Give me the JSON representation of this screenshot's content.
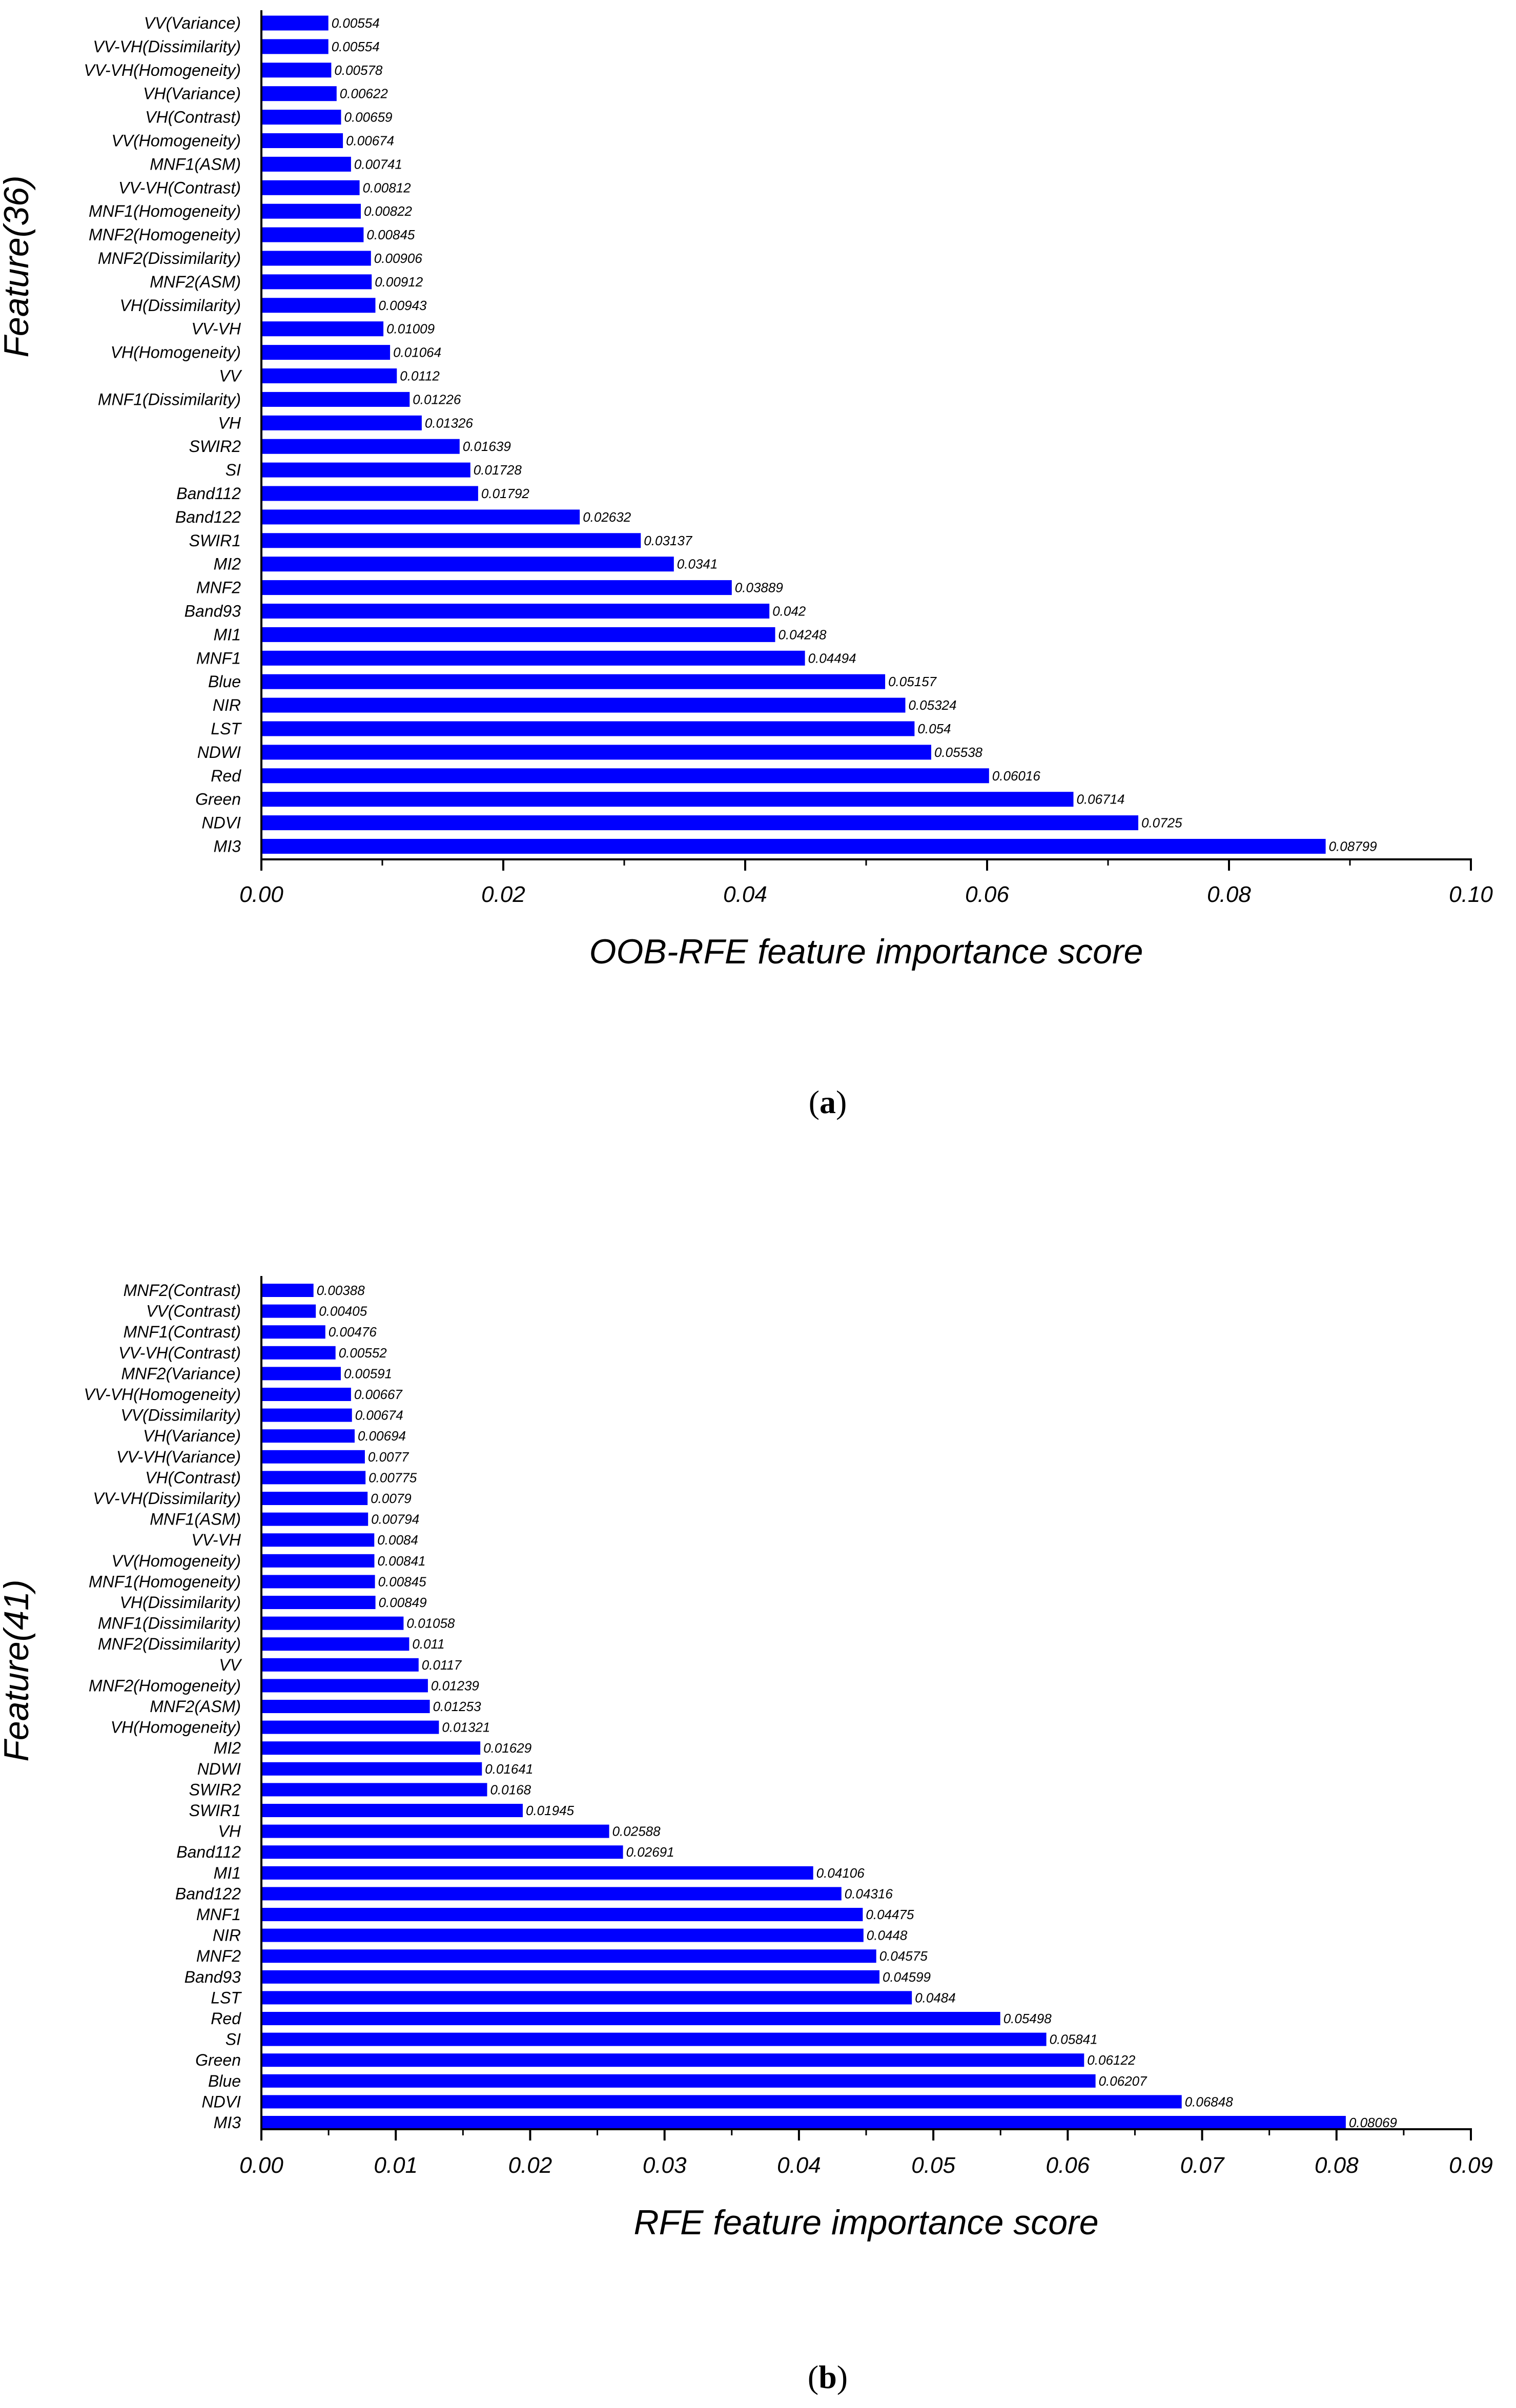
{
  "colors": {
    "bar": "#0000ff",
    "axis": "#000000",
    "text": "#000000"
  },
  "chart_data": [
    {
      "type": "bar",
      "orientation": "horizontal",
      "panel_label": "a",
      "ylabel": "Feature(36)",
      "xlabel": "OOB-RFE feature importance score",
      "xlim": [
        0,
        0.1
      ],
      "xticks": [
        "0.00",
        "0.02",
        "0.04",
        "0.06",
        "0.08",
        "0.10"
      ],
      "categories": [
        "VV(Variance)",
        "VV-VH(Dissimilarity)",
        "VV-VH(Homogeneity)",
        "VH(Variance)",
        "VH(Contrast)",
        "VV(Homogeneity)",
        "MNF1(ASM)",
        "VV-VH(Contrast)",
        "MNF1(Homogeneity)",
        "MNF2(Homogeneity)",
        "MNF2(Dissimilarity)",
        "MNF2(ASM)",
        "VH(Dissimilarity)",
        "VV-VH",
        "VH(Homogeneity)",
        "VV",
        "MNF1(Dissimilarity)",
        "VH",
        "SWIR2",
        "SI",
        "Band112",
        "Band122",
        "SWIR1",
        "MI2",
        "MNF2",
        "Band93",
        "MI1",
        "MNF1",
        "Blue",
        "NIR",
        "LST",
        "NDWI",
        "Red",
        "Green",
        "NDVI",
        "MI3"
      ],
      "values": [
        0.00554,
        0.00554,
        0.00578,
        0.00622,
        0.00659,
        0.00674,
        0.00741,
        0.00812,
        0.00822,
        0.00845,
        0.00906,
        0.00912,
        0.00943,
        0.01009,
        0.01064,
        0.0112,
        0.01226,
        0.01326,
        0.01639,
        0.01728,
        0.01792,
        0.02632,
        0.03137,
        0.0341,
        0.03889,
        0.042,
        0.04248,
        0.04494,
        0.05157,
        0.05324,
        0.054,
        0.05538,
        0.06016,
        0.06714,
        0.0725,
        0.08799
      ],
      "value_labels": [
        "0.00554",
        "0.00554",
        "0.00578",
        "0.00622",
        "0.00659",
        "0.00674",
        "0.00741",
        "0.00812",
        "0.00822",
        "0.00845",
        "0.00906",
        "0.00912",
        "0.00943",
        "0.01009",
        "0.01064",
        "0.0112",
        "0.01226",
        "0.01326",
        "0.01639",
        "0.01728",
        "0.01792",
        "0.02632",
        "0.03137",
        "0.0341",
        "0.03889",
        "0.042",
        "0.04248",
        "0.04494",
        "0.05157",
        "0.05324",
        "0.054",
        "0.05538",
        "0.06016",
        "0.06714",
        "0.0725",
        "0.08799"
      ]
    },
    {
      "type": "bar",
      "orientation": "horizontal",
      "panel_label": "b",
      "ylabel": "Feature(41)",
      "xlabel": "RFE feature importance score",
      "xlim": [
        0,
        0.09
      ],
      "xticks": [
        "0.00",
        "0.01",
        "0.02",
        "0.03",
        "0.04",
        "0.05",
        "0.06",
        "0.07",
        "0.08",
        "0.09"
      ],
      "categories": [
        "MNF2(Contrast)",
        "VV(Contrast)",
        "MNF1(Contrast)",
        "VV-VH(Contrast)",
        "MNF2(Variance)",
        "VV-VH(Homogeneity)",
        "VV(Dissimilarity)",
        "VH(Variance)",
        "VV-VH(Variance)",
        "VH(Contrast)",
        "VV-VH(Dissimilarity)",
        "MNF1(ASM)",
        "VV-VH",
        "VV(Homogeneity)",
        "MNF1(Homogeneity)",
        "VH(Dissimilarity)",
        "MNF1(Dissimilarity)",
        "MNF2(Dissimilarity)",
        "VV",
        "MNF2(Homogeneity)",
        "MNF2(ASM)",
        "VH(Homogeneity)",
        "MI2",
        "NDWI",
        "SWIR2",
        "SWIR1",
        "VH",
        "Band112",
        "MI1",
        "Band122",
        "MNF1",
        "NIR",
        "MNF2",
        "Band93",
        "LST",
        "Red",
        "SI",
        "Green",
        "Blue",
        "NDVI",
        "MI3"
      ],
      "values": [
        0.00388,
        0.00405,
        0.00476,
        0.00552,
        0.00591,
        0.00667,
        0.00674,
        0.00694,
        0.0077,
        0.00775,
        0.0079,
        0.00794,
        0.0084,
        0.00841,
        0.00845,
        0.00849,
        0.01058,
        0.011,
        0.0117,
        0.01239,
        0.01253,
        0.01321,
        0.01629,
        0.01641,
        0.0168,
        0.01945,
        0.02588,
        0.02691,
        0.04106,
        0.04316,
        0.04475,
        0.0448,
        0.04575,
        0.04599,
        0.0484,
        0.05498,
        0.05841,
        0.06122,
        0.06207,
        0.06848,
        0.08069
      ],
      "value_labels": [
        "0.00388",
        "0.00405",
        "0.00476",
        "0.00552",
        "0.00591",
        "0.00667",
        "0.00674",
        "0.00694",
        "0.0077",
        "0.00775",
        "0.0079",
        "0.00794",
        "0.0084",
        "0.00841",
        "0.00845",
        "0.00849",
        "0.01058",
        "0.011",
        "0.0117",
        "0.01239",
        "0.01253",
        "0.01321",
        "0.01629",
        "0.01641",
        "0.0168",
        "0.01945",
        "0.02588",
        "0.02691",
        "0.04106",
        "0.04316",
        "0.04475",
        "0.0448",
        "0.04575",
        "0.04599",
        "0.0484",
        "0.05498",
        "0.05841",
        "0.06122",
        "0.06207",
        "0.06848",
        "0.08069"
      ]
    }
  ]
}
